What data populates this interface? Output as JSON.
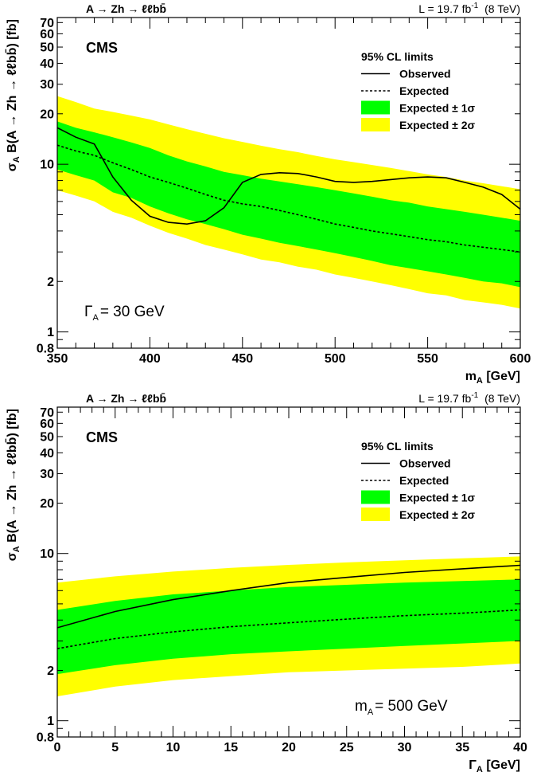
{
  "chart_data": [
    {
      "type": "line",
      "process": "A → Zh → ℓℓbb̄",
      "lumi_text": "L = 19.7 fb",
      "lumi_sup": "-1",
      "energy_text": "(8 TeV)",
      "experiment": "CMS",
      "ylabel": "σ",
      "ylabel_sub": "A",
      "ylabel_rest": " B(A → Zh → ℓℓbb̄) [fb]",
      "xlabel": "m",
      "xlabel_sub": "A",
      "xlabel_rest": " [GeV]",
      "annotation_main": "Γ",
      "annotation_sub": "A",
      "annotation_rest": "= 30 GeV",
      "legend": {
        "title": "95% CL limits",
        "entries": [
          "Observed",
          "Expected",
          "Expected ± 1σ",
          "Expected ± 2σ"
        ],
        "placement": "top-right"
      },
      "xlim": [
        350,
        600
      ],
      "ylim": [
        0.8,
        75
      ],
      "yscale": "log",
      "xticks": [
        350,
        400,
        450,
        500,
        550,
        600
      ],
      "xtick_labels": [
        "350",
        "400",
        "450",
        "500",
        "550",
        "600"
      ],
      "yticks": [
        0.8,
        1,
        2,
        10,
        20,
        30,
        40,
        50,
        60,
        70
      ],
      "ytick_labels": [
        "0.8",
        "1",
        "2",
        "10",
        "20",
        "30",
        "40",
        "50",
        "60",
        "70"
      ],
      "colors": {
        "band1": "#00ff00",
        "band2": "#ffff00",
        "line": "#000000"
      },
      "x": [
        350,
        360,
        370,
        380,
        390,
        400,
        410,
        420,
        430,
        440,
        450,
        460,
        470,
        480,
        490,
        500,
        510,
        520,
        530,
        540,
        550,
        560,
        570,
        580,
        590,
        600
      ],
      "series": [
        {
          "name": "Observed",
          "values": [
            16.5,
            14.5,
            13.2,
            8.4,
            6.1,
            4.9,
            4.5,
            4.4,
            4.6,
            5.5,
            7.8,
            8.7,
            8.9,
            8.8,
            8.4,
            7.9,
            7.8,
            7.9,
            8.1,
            8.3,
            8.4,
            8.3,
            7.8,
            7.3,
            6.6,
            5.4
          ]
        },
        {
          "name": "Expected",
          "values": [
            13.0,
            12.0,
            11.3,
            10.2,
            9.3,
            8.4,
            7.8,
            7.2,
            6.6,
            6.1,
            5.8,
            5.6,
            5.3,
            5.0,
            4.7,
            4.4,
            4.2,
            4.0,
            3.85,
            3.7,
            3.55,
            3.45,
            3.3,
            3.2,
            3.1,
            3.0
          ]
        },
        {
          "name": "Expected ± 1σ",
          "low": [
            9.3,
            8.6,
            8.0,
            6.8,
            6.3,
            5.6,
            5.1,
            4.7,
            4.4,
            4.1,
            3.8,
            3.6,
            3.4,
            3.25,
            3.1,
            2.95,
            2.8,
            2.65,
            2.5,
            2.4,
            2.3,
            2.2,
            2.1,
            2.0,
            1.95,
            1.85
          ],
          "high": [
            18.0,
            16.5,
            15.5,
            14.5,
            13.5,
            12.5,
            11.3,
            10.4,
            9.7,
            9.0,
            8.6,
            8.2,
            7.9,
            7.6,
            7.3,
            7.0,
            6.7,
            6.4,
            6.1,
            5.9,
            5.6,
            5.4,
            5.2,
            5.0,
            4.8,
            4.6
          ]
        },
        {
          "name": "Expected ± 2σ",
          "low": [
            7.0,
            6.5,
            6.0,
            5.2,
            4.8,
            4.3,
            3.9,
            3.6,
            3.3,
            3.1,
            2.9,
            2.7,
            2.6,
            2.45,
            2.35,
            2.2,
            2.1,
            2.0,
            1.9,
            1.8,
            1.7,
            1.65,
            1.55,
            1.5,
            1.45,
            1.38
          ],
          "high": [
            25.5,
            23.5,
            21.5,
            20.5,
            19.5,
            18.5,
            17.3,
            16.2,
            15.2,
            14.3,
            13.6,
            12.9,
            12.3,
            11.8,
            11.2,
            10.7,
            10.3,
            9.9,
            9.5,
            9.1,
            8.7,
            8.4,
            8.0,
            7.7,
            7.4,
            7.1
          ]
        }
      ]
    },
    {
      "type": "line",
      "process": "A → Zh → ℓℓbb̄",
      "lumi_text": "L = 19.7 fb",
      "lumi_sup": "-1",
      "energy_text": "(8 TeV)",
      "experiment": "CMS",
      "ylabel": "σ",
      "ylabel_sub": "A",
      "ylabel_rest": " B(A → Zh → ℓℓbb̄) [fb]",
      "xlabel": "Γ",
      "xlabel_sub": "A",
      "xlabel_rest": " [GeV]",
      "annotation_main": "m",
      "annotation_sub": "A",
      "annotation_rest": "= 500 GeV",
      "legend": {
        "title": "95% CL limits",
        "entries": [
          "Observed",
          "Expected",
          "Expected ± 1σ",
          "Expected ± 2σ"
        ],
        "placement": "top-right"
      },
      "xlim": [
        0,
        40
      ],
      "ylim": [
        0.8,
        75
      ],
      "yscale": "log",
      "xticks": [
        0,
        5,
        10,
        15,
        20,
        25,
        30,
        35,
        40
      ],
      "xtick_labels": [
        "0",
        "5",
        "10",
        "15",
        "20",
        "25",
        "30",
        "35",
        "40"
      ],
      "yticks": [
        0.8,
        1,
        2,
        10,
        20,
        30,
        40,
        50,
        60,
        70
      ],
      "ytick_labels": [
        "0.8",
        "1",
        "2",
        "10",
        "20",
        "30",
        "40",
        "50",
        "60",
        "70"
      ],
      "colors": {
        "band1": "#00ff00",
        "band2": "#ffff00",
        "line": "#000000"
      },
      "x": [
        0,
        5,
        10,
        15,
        20,
        25,
        30,
        35,
        40
      ],
      "series": [
        {
          "name": "Observed",
          "values": [
            3.6,
            4.5,
            5.3,
            6.0,
            6.7,
            7.2,
            7.7,
            8.1,
            8.5
          ]
        },
        {
          "name": "Expected",
          "values": [
            2.7,
            3.1,
            3.4,
            3.65,
            3.85,
            4.05,
            4.25,
            4.4,
            4.6
          ]
        },
        {
          "name": "Expected ± 1σ",
          "low": [
            1.9,
            2.15,
            2.35,
            2.5,
            2.6,
            2.7,
            2.8,
            2.9,
            3.0
          ],
          "high": [
            4.6,
            5.2,
            5.7,
            6.0,
            6.3,
            6.5,
            6.7,
            6.85,
            7.0
          ]
        },
        {
          "name": "Expected ± 2σ",
          "low": [
            1.4,
            1.6,
            1.75,
            1.85,
            1.95,
            2.0,
            2.05,
            2.1,
            2.2
          ],
          "high": [
            6.7,
            7.3,
            7.8,
            8.2,
            8.55,
            8.85,
            9.1,
            9.35,
            9.6
          ]
        }
      ]
    }
  ]
}
